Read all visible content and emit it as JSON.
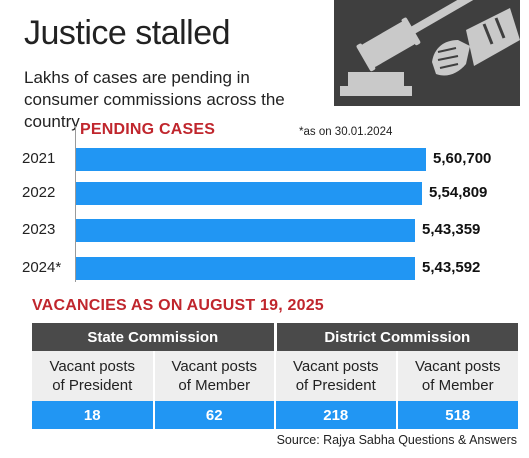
{
  "header": {
    "title": "Justice stalled",
    "subtitle": "Lakhs of cases are pending in consumer commissions across the country",
    "logo_icon": "judge-gavel-hand-icon"
  },
  "pending": {
    "heading": "PENDING CASES",
    "note": "*as on 30.01.2024"
  },
  "chart_data": {
    "type": "bar",
    "orientation": "horizontal",
    "title": "PENDING CASES",
    "categories": [
      "2021",
      "2022",
      "2023",
      "2024*"
    ],
    "values": [
      560700,
      554809,
      543359,
      543592
    ],
    "value_labels": [
      "5,60,700",
      "5,54,809",
      "5,43,359",
      "5,43,592"
    ],
    "annotation": "*as on 30.01.2024",
    "xlim": [
      0,
      560700
    ],
    "grid": false,
    "bar_color": "#2196f3"
  },
  "vacancies": {
    "heading": "VACANCIES AS ON AUGUST 19, 2025",
    "groups": [
      "State Commission",
      "District Commission"
    ],
    "columns": [
      {
        "label_line1": "Vacant posts",
        "label_line2": "of President",
        "value": "18"
      },
      {
        "label_line1": "Vacant posts",
        "label_line2": "of Member",
        "value": "62"
      },
      {
        "label_line1": "Vacant posts",
        "label_line2": "of President",
        "value": "218"
      },
      {
        "label_line1": "Vacant posts",
        "label_line2": "of Member",
        "value": "518"
      }
    ]
  },
  "source": "Source: Rajya Sabha Questions & Answers",
  "colors": {
    "accent_red": "#c0262d",
    "bar_blue": "#2196f3",
    "header_dark": "#4a4a4a",
    "cell_gray": "#eeeeee"
  }
}
